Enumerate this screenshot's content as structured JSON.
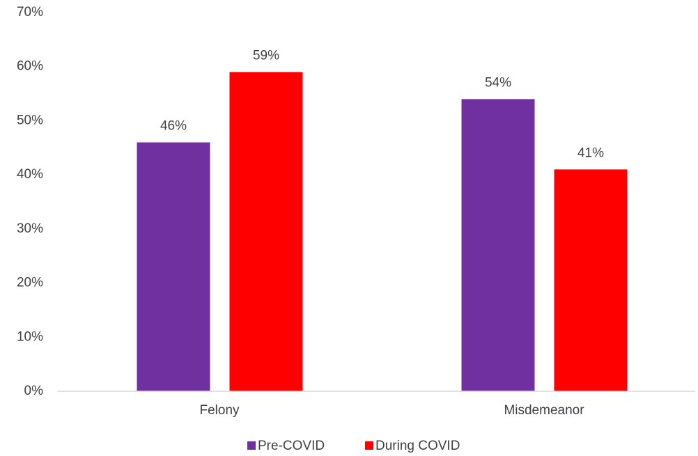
{
  "chart_data": {
    "type": "bar",
    "categories": [
      "Felony",
      "Misdemeanor"
    ],
    "series": [
      {
        "name": "Pre-COVID",
        "color": "#7030a0",
        "values": [
          46,
          54
        ],
        "value_labels": [
          "46%",
          "54%"
        ]
      },
      {
        "name": "During COVID",
        "color": "#ff0000",
        "values": [
          59,
          41
        ],
        "value_labels": [
          "59%",
          "41%"
        ]
      }
    ],
    "ylim": [
      0,
      70
    ],
    "yticks": [
      {
        "value": 0,
        "label": "0%"
      },
      {
        "value": 10,
        "label": "10%"
      },
      {
        "value": 20,
        "label": "20%"
      },
      {
        "value": 30,
        "label": "30%"
      },
      {
        "value": 40,
        "label": "40%"
      },
      {
        "value": 50,
        "label": "50%"
      },
      {
        "value": 60,
        "label": "60%"
      },
      {
        "value": 70,
        "label": "70%"
      }
    ],
    "grid": false,
    "legend": "bottom"
  }
}
